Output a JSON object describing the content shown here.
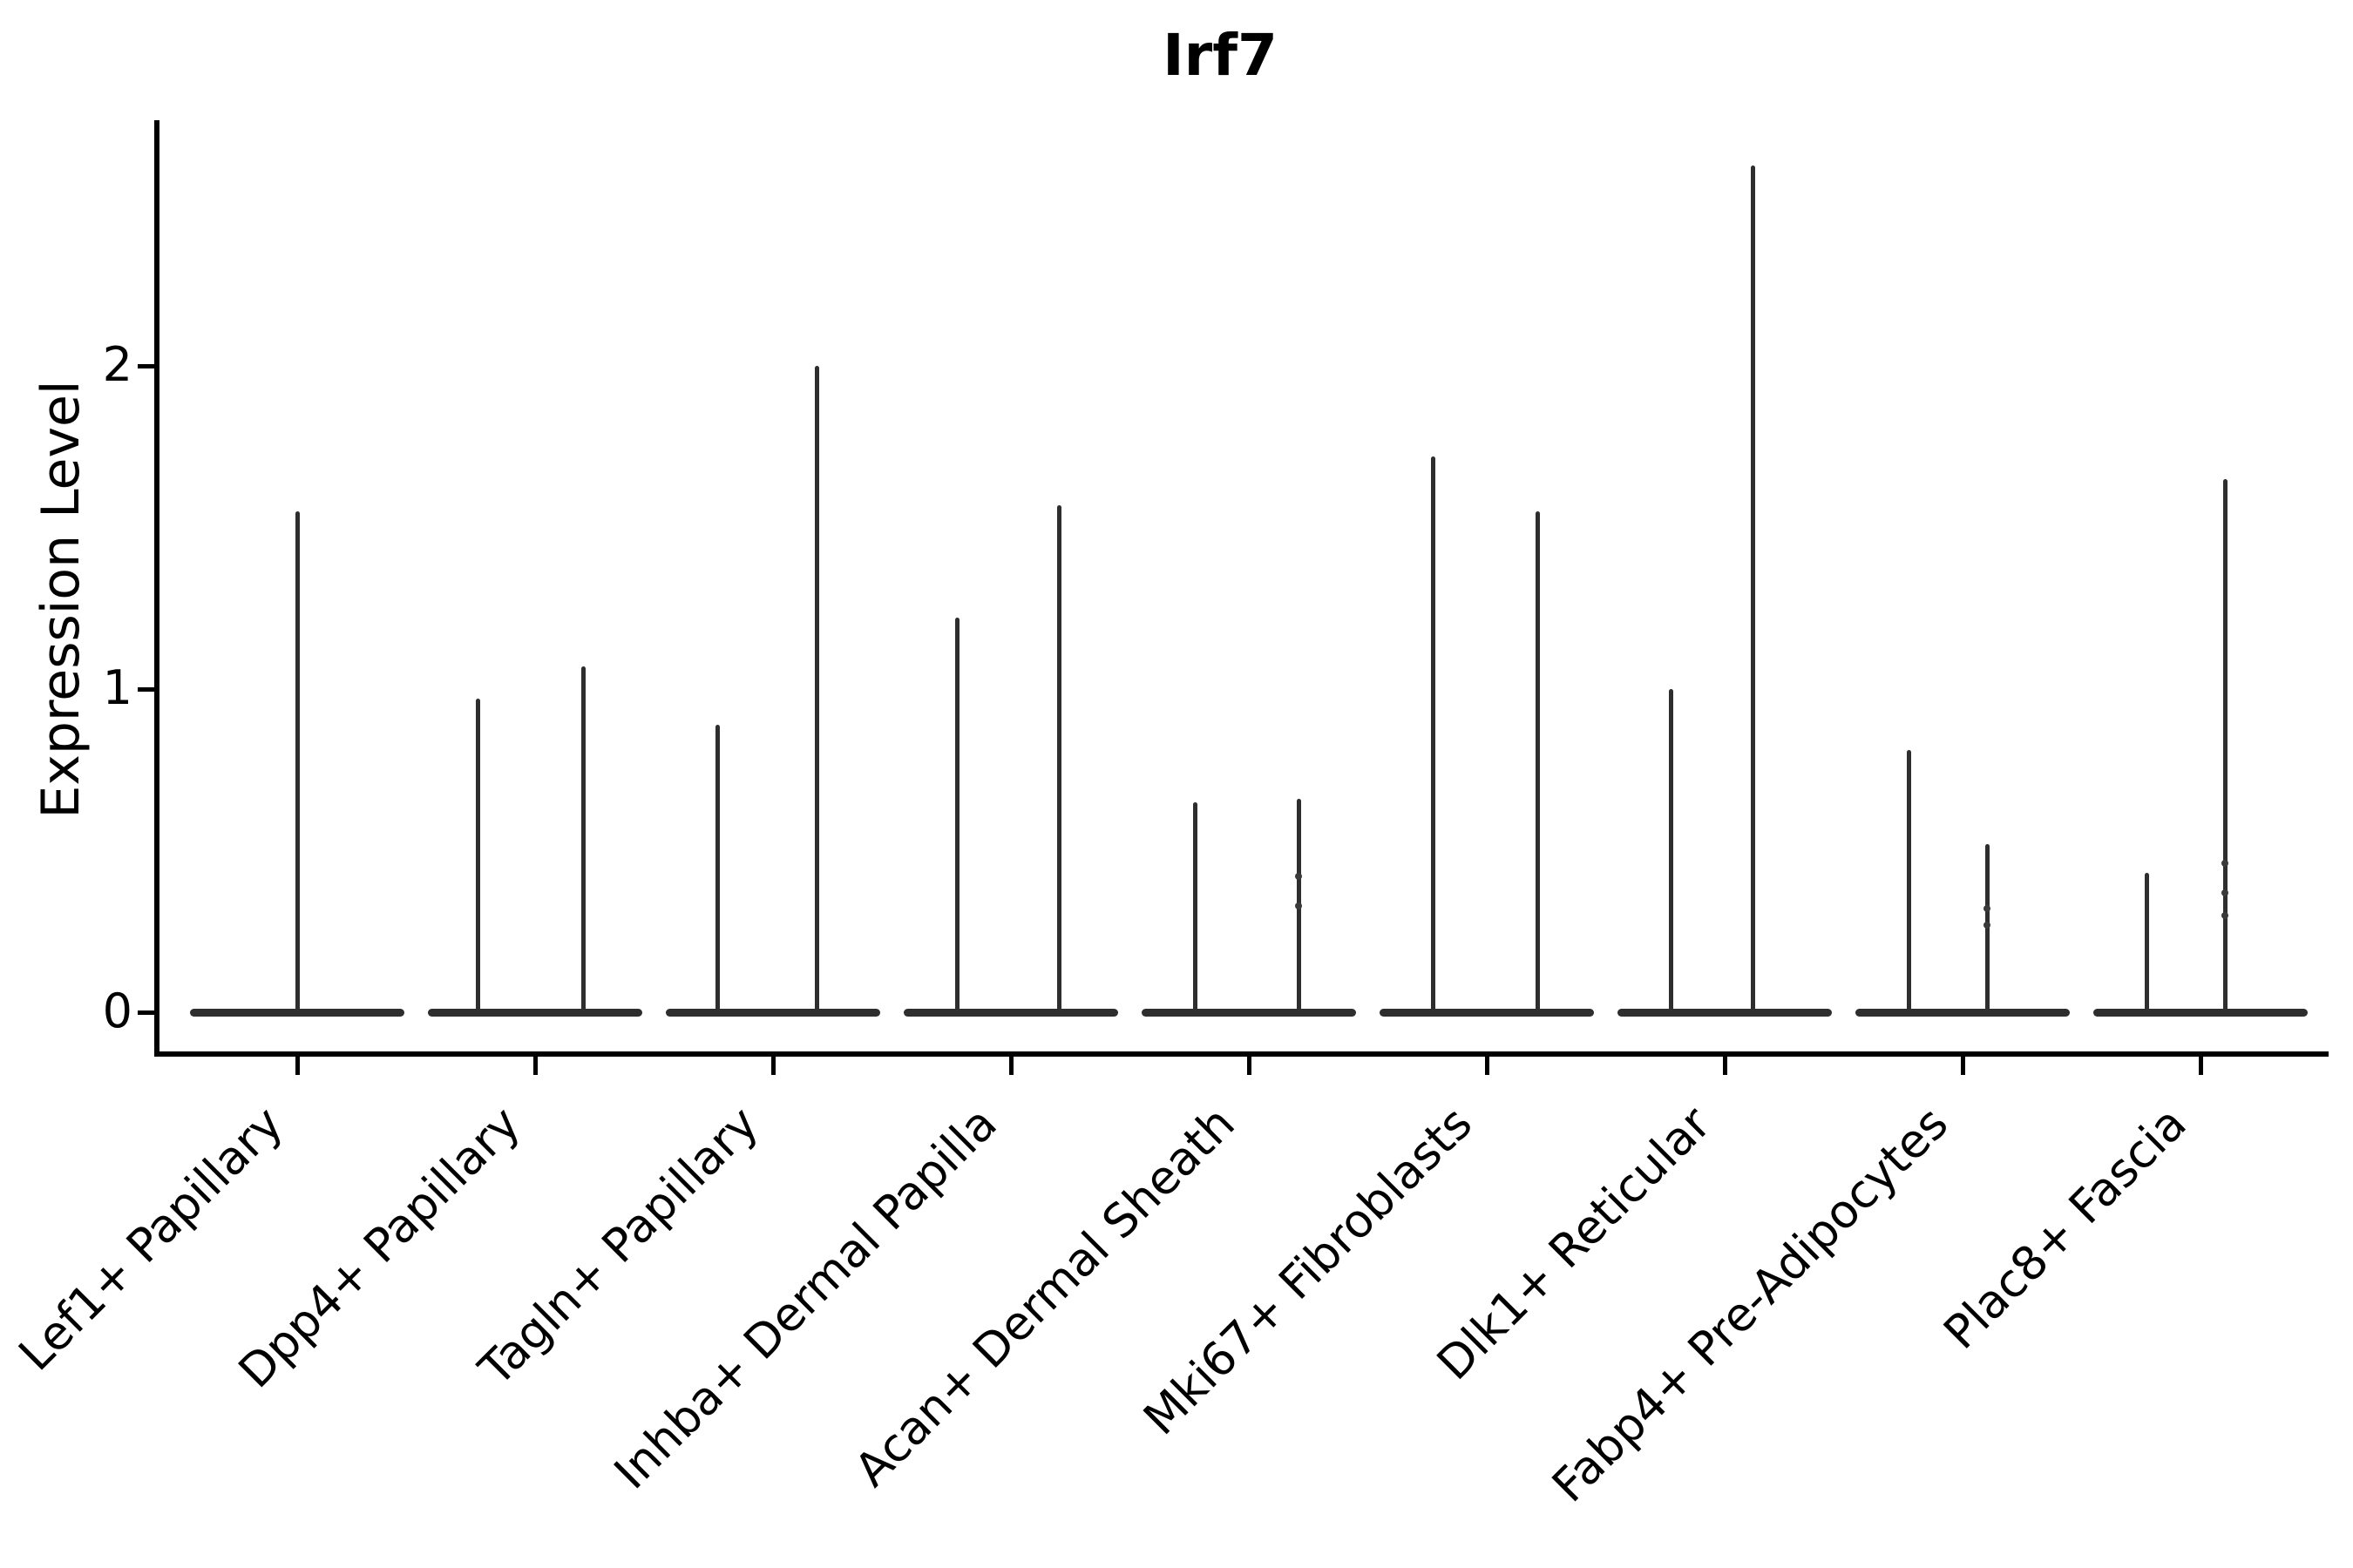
{
  "title": "Irf7",
  "y_axis": {
    "label": "Expression Level",
    "tick_labels": [
      "0",
      "1",
      "2"
    ]
  },
  "colors": {
    "violin": "#2e2e2e",
    "axis": "#000000",
    "text": "#000000",
    "background": "#ffffff"
  },
  "chart_data": {
    "type": "violin",
    "title": "Irf7",
    "ylabel": "Expression Level",
    "xlabel": "",
    "ylim": [
      -0.12,
      2.76
    ],
    "yticks": [
      0,
      1,
      2
    ],
    "grid": false,
    "legend": "none",
    "description": "Single-cell expression violin plot; each category shows a flat density mass at 0 with thin spikes rising to the maximum expression of 1-2 sub-violins",
    "categories": [
      "Lef1+ Papillary",
      "Dpp4+ Papillary",
      "Tagln+ Papillary",
      "Inhba+ Dermal Papilla",
      "Acan+ Dermal Sheath",
      "Mki67+ Fibroblasts",
      "Dlk1+ Reticular",
      "Fabp4+ Pre-Adipocytes",
      "Plac8+ Fascia"
    ],
    "violins": [
      {
        "label": "Lef1+ Papillary",
        "spike_maxima": [
          1.55
        ],
        "offsets": [
          0
        ],
        "points": [
          []
        ]
      },
      {
        "label": "Dpp4+ Papillary",
        "spike_maxima": [
          0.97,
          1.07
        ],
        "offsets": [
          -66,
          55
        ],
        "points": [
          [],
          []
        ]
      },
      {
        "label": "Tagln+ Papillary",
        "spike_maxima": [
          0.89,
          2.0
        ],
        "offsets": [
          -64,
          50
        ],
        "points": [
          [],
          []
        ]
      },
      {
        "label": "Inhba+ Dermal Papilla",
        "spike_maxima": [
          1.22,
          1.57
        ],
        "offsets": [
          -62,
          55
        ],
        "points": [
          [],
          []
        ]
      },
      {
        "label": "Acan+ Dermal Sheath",
        "spike_maxima": [
          0.65,
          0.66
        ],
        "offsets": [
          -62,
          57
        ],
        "points": [
          [],
          [
            0.42,
            0.33
          ]
        ]
      },
      {
        "label": "Mki67+ Fibroblasts",
        "spike_maxima": [
          1.72,
          1.55
        ],
        "offsets": [
          -62,
          58
        ],
        "points": [
          [],
          []
        ]
      },
      {
        "label": "Dlk1+ Reticular",
        "spike_maxima": [
          1.0,
          2.62
        ],
        "offsets": [
          -62,
          32
        ],
        "points": [
          [],
          []
        ]
      },
      {
        "label": "Fabp4+ Pre-Adipocytes",
        "spike_maxima": [
          0.81,
          0.52
        ],
        "offsets": [
          -62,
          28
        ],
        "points": [
          [],
          [
            0.32,
            0.27
          ]
        ]
      },
      {
        "label": "Plac8+ Fascia",
        "spike_maxima": [
          0.43,
          1.65
        ],
        "offsets": [
          -62,
          28
        ],
        "points": [
          [],
          [
            0.46,
            0.37,
            0.3
          ]
        ]
      }
    ],
    "baseline_value": 0
  }
}
